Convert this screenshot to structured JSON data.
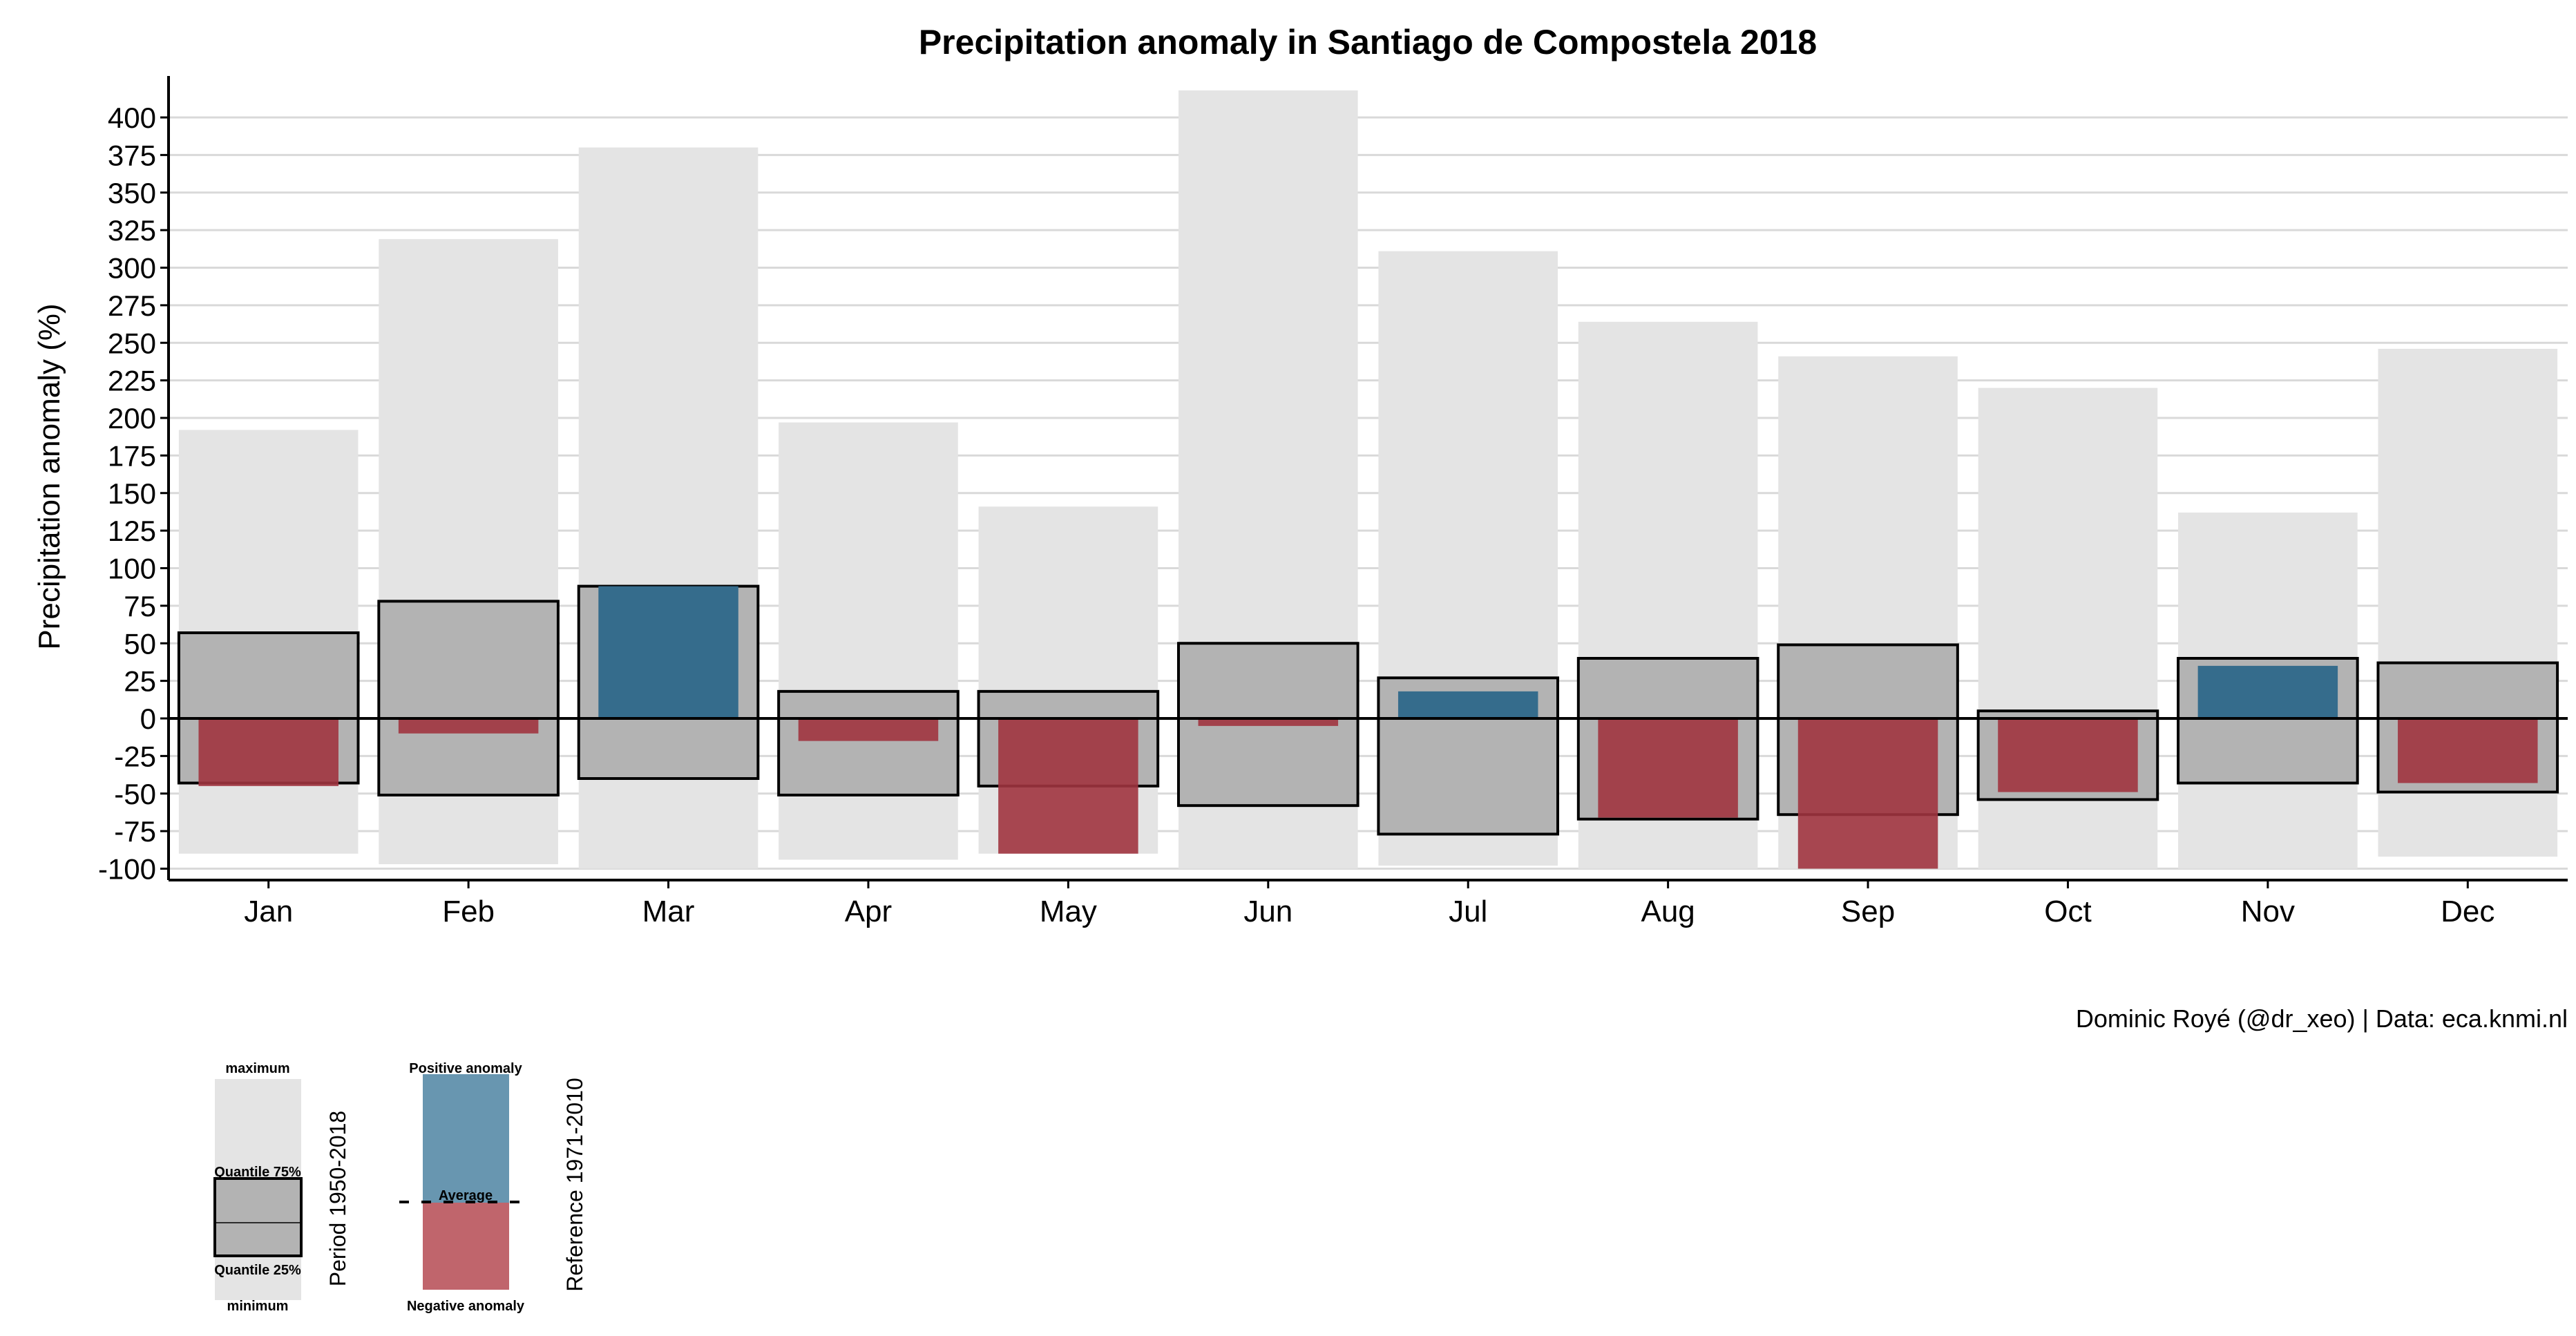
{
  "chart_data": {
    "type": "bar",
    "title": "Precipitation anomaly in Santiago de Compostela 2018",
    "xlabel": "",
    "ylabel": "Precipitation anomaly (%)",
    "ylim": [
      -100,
      420
    ],
    "yticks": [
      -100,
      -75,
      -50,
      -25,
      0,
      25,
      50,
      75,
      100,
      125,
      150,
      175,
      200,
      225,
      250,
      275,
      300,
      325,
      350,
      375,
      400
    ],
    "grid": "horizontal",
    "categories": [
      "Jan",
      "Feb",
      "Mar",
      "Apr",
      "May",
      "Jun",
      "Jul",
      "Aug",
      "Sep",
      "Oct",
      "Nov",
      "Dec"
    ],
    "series": [
      {
        "name": "maximum",
        "values": [
          192,
          319,
          380,
          197,
          141,
          418,
          311,
          264,
          241,
          220,
          137,
          246
        ]
      },
      {
        "name": "minimum",
        "values": [
          -90,
          -97,
          -100,
          -94,
          -90,
          -100,
          -98,
          -100,
          -100,
          -100,
          -100,
          -92
        ]
      },
      {
        "name": "Quantile 75%",
        "values": [
          57,
          78,
          88,
          18,
          18,
          50,
          27,
          40,
          49,
          5,
          40,
          37
        ]
      },
      {
        "name": "Quantile 25%",
        "values": [
          -43,
          -51,
          -40,
          -51,
          -45,
          -58,
          -77,
          -67,
          -64,
          -54,
          -43,
          -49
        ]
      },
      {
        "name": "anomaly 2018",
        "values": [
          -45,
          -10,
          88,
          -15,
          -90,
          -5,
          18,
          -66,
          -100,
          -49,
          35,
          -43
        ]
      }
    ],
    "colors": {
      "range": "#e4e4e4",
      "iqr": "#b3b3b3",
      "positive": "#356c8c",
      "negative": "#a0343f",
      "negative_light": "#b0464f",
      "grid": "#d9d9d9"
    }
  },
  "caption": "Dominic Royé (@dr_xeo) | Data: eca.knmi.nl",
  "legend": {
    "range": {
      "maximum": "maximum",
      "q75": "Quantile 75%",
      "q25": "Quantile 25%",
      "minimum": "minimum",
      "title": "Period 1950-2018",
      "colors": {
        "range": "#e4e4e4",
        "iqr": "#b3b3b3"
      }
    },
    "anomaly": {
      "positive": "Positive anomaly",
      "average": "Average",
      "negative": "Negative anomaly",
      "title": "Reference 1971-2010",
      "colors": {
        "positive": "#6896b0",
        "negative": "#c0656c"
      }
    }
  }
}
